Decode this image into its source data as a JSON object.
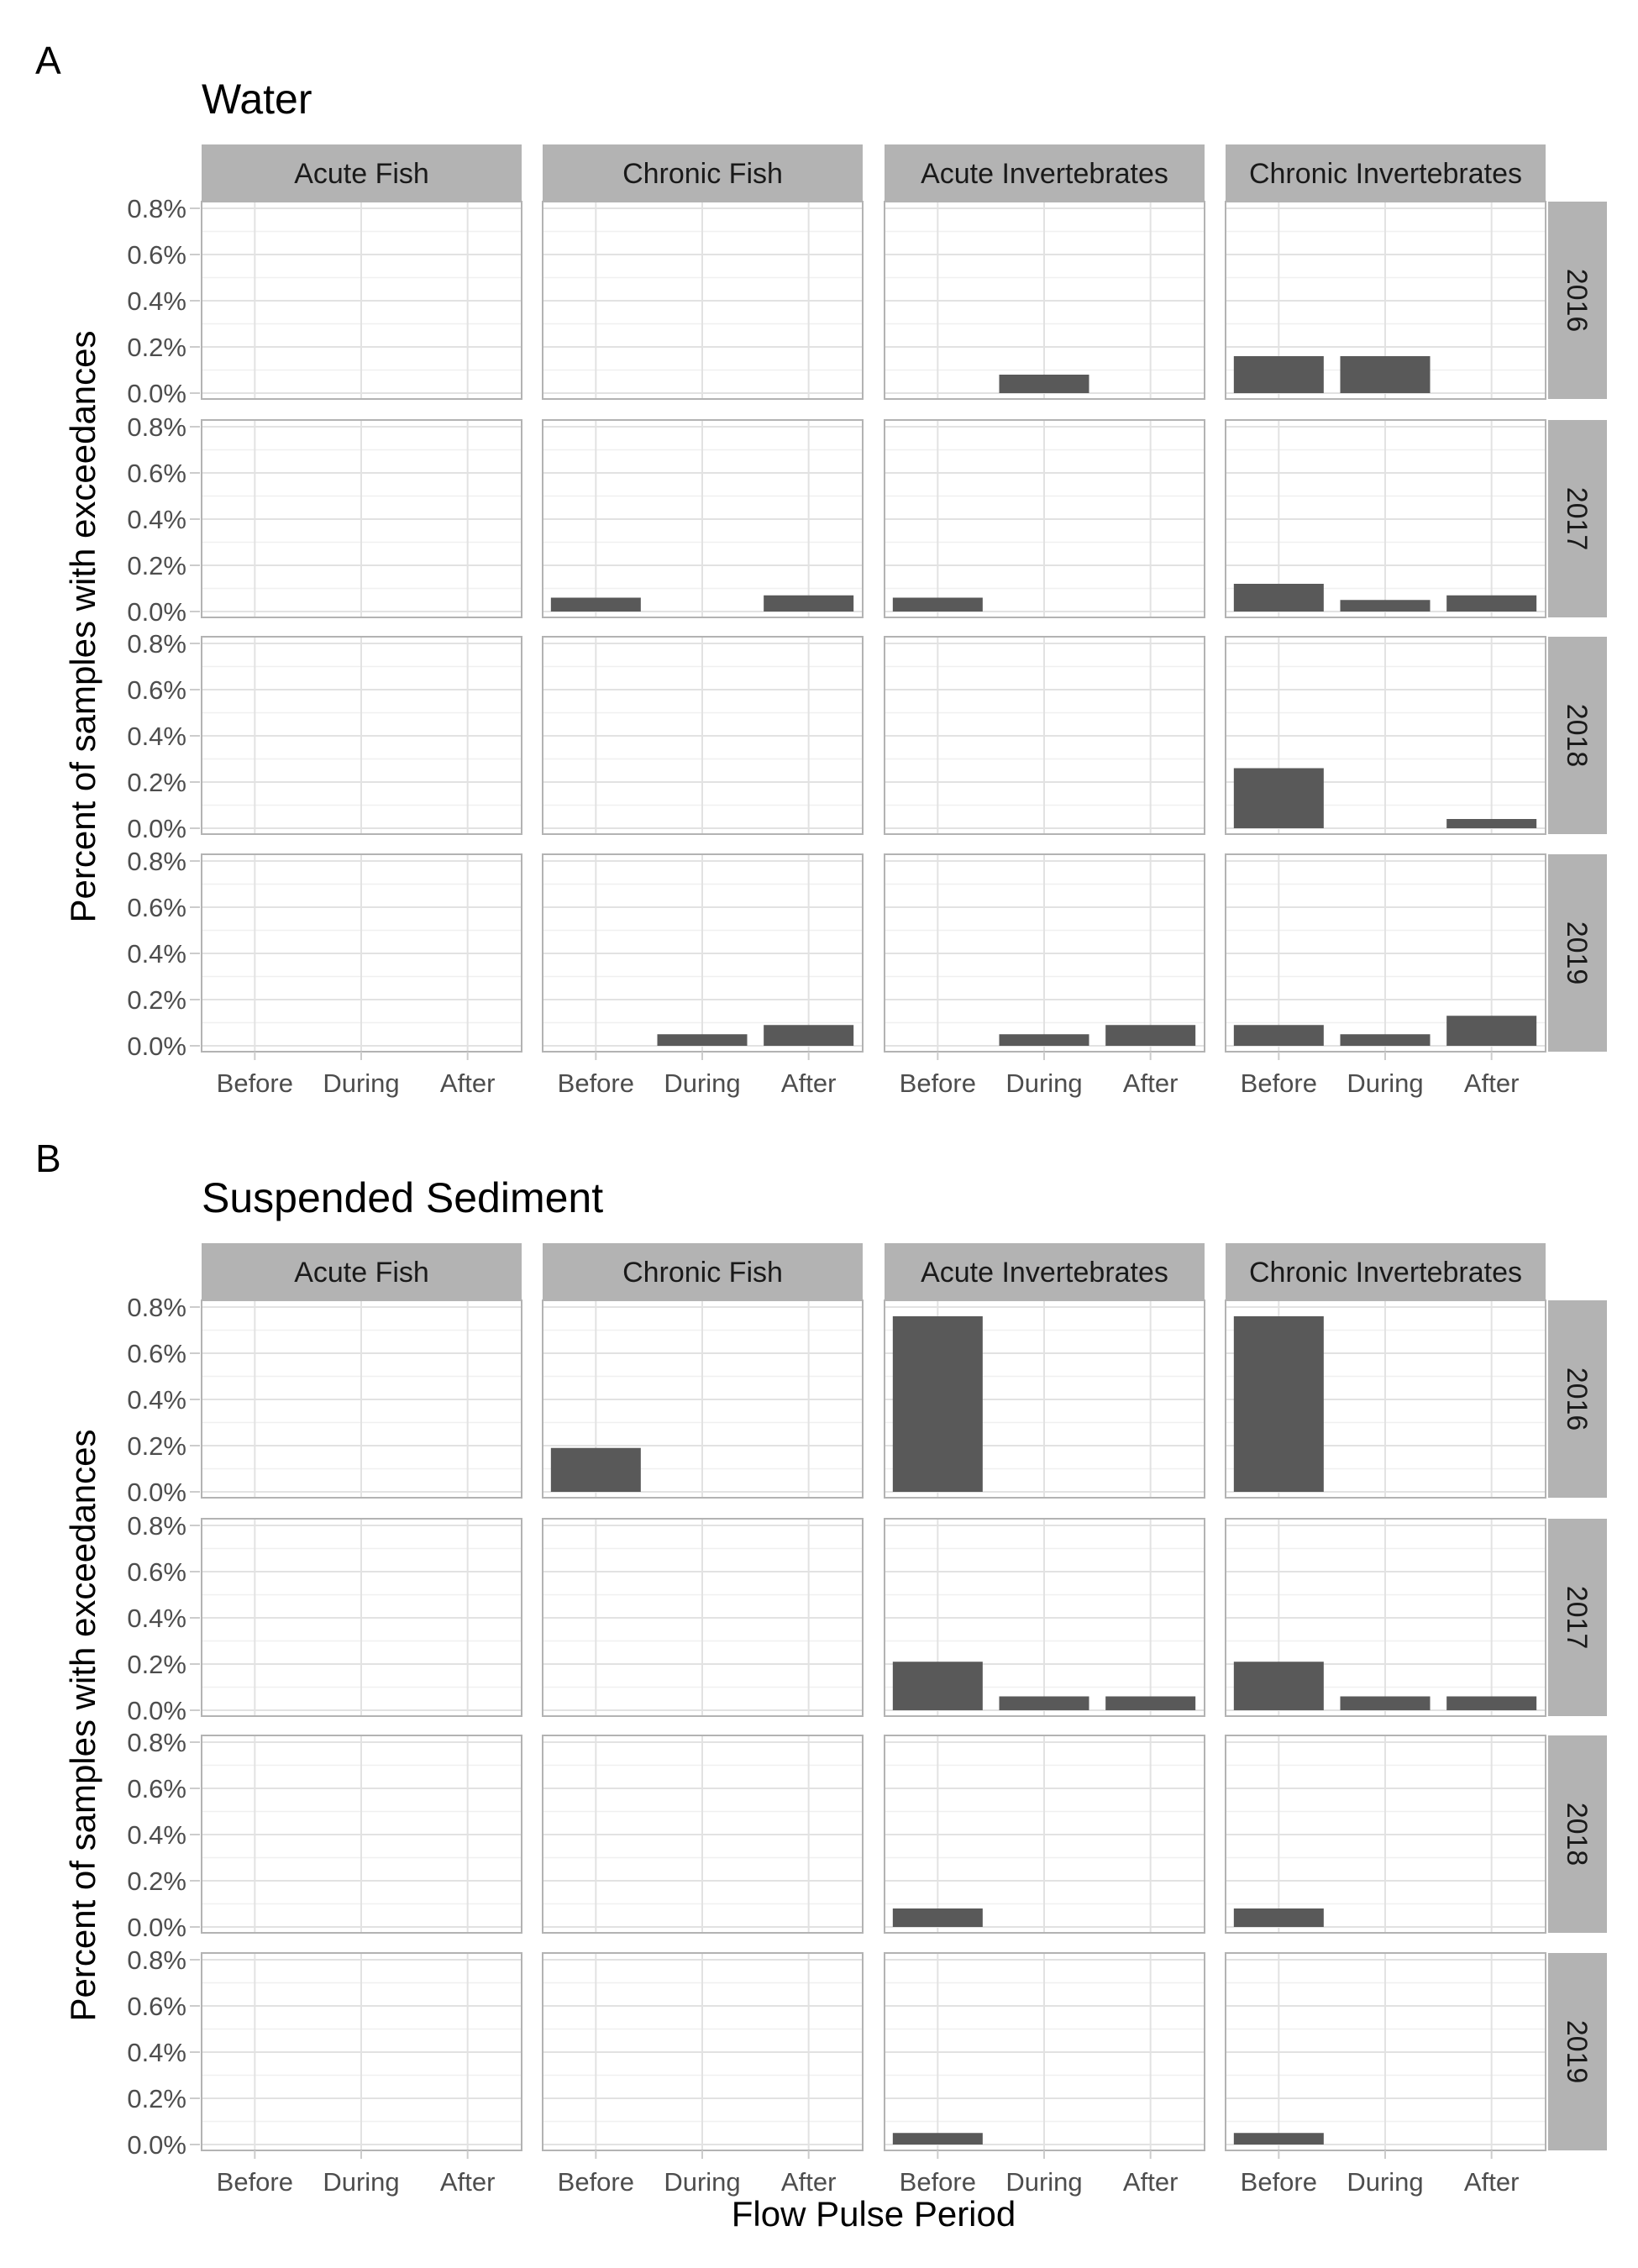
{
  "figure": {
    "x_axis_title": "Flow Pulse Period"
  },
  "chart_data": [
    {
      "type": "bar",
      "panel_label": "A",
      "title": "Water",
      "ylabel": "Percent of samples with exceedances",
      "xlabel": "",
      "facet_columns": [
        "Acute Fish",
        "Chronic Fish",
        "Acute Invertebrates",
        "Chronic Invertebrates"
      ],
      "facet_rows": [
        "2016",
        "2017",
        "2018",
        "2019"
      ],
      "categories": [
        "Before",
        "During",
        "After"
      ],
      "ylim": [
        0,
        0.8
      ],
      "yticks": [
        "0.0%",
        "0.2%",
        "0.4%",
        "0.6%",
        "0.8%"
      ],
      "grid": true,
      "values": [
        [
          [
            0,
            0,
            0
          ],
          [
            0,
            0,
            0
          ],
          [
            0,
            0.08,
            0
          ],
          [
            0.16,
            0.16,
            0
          ]
        ],
        [
          [
            0,
            0,
            0
          ],
          [
            0.06,
            0,
            0.07
          ],
          [
            0.06,
            0,
            0
          ],
          [
            0.12,
            0.05,
            0.07
          ]
        ],
        [
          [
            0,
            0,
            0
          ],
          [
            0,
            0,
            0
          ],
          [
            0,
            0,
            0
          ],
          [
            0.26,
            0,
            0.04
          ]
        ],
        [
          [
            0,
            0,
            0
          ],
          [
            0,
            0.05,
            0.09
          ],
          [
            0,
            0.05,
            0.09
          ],
          [
            0.09,
            0.05,
            0.13
          ]
        ]
      ]
    },
    {
      "type": "bar",
      "panel_label": "B",
      "title": "Suspended Sediment",
      "ylabel": "Percent of samples with exceedances",
      "xlabel": "Flow Pulse Period",
      "facet_columns": [
        "Acute Fish",
        "Chronic Fish",
        "Acute Invertebrates",
        "Chronic Invertebrates"
      ],
      "facet_rows": [
        "2016",
        "2017",
        "2018",
        "2019"
      ],
      "categories": [
        "Before",
        "During",
        "After"
      ],
      "ylim": [
        0,
        0.8
      ],
      "yticks": [
        "0.0%",
        "0.2%",
        "0.4%",
        "0.6%",
        "0.8%"
      ],
      "grid": true,
      "values": [
        [
          [
            0,
            0,
            0
          ],
          [
            0.19,
            0,
            0
          ],
          [
            0.76,
            0,
            0
          ],
          [
            0.76,
            0,
            0
          ]
        ],
        [
          [
            0,
            0,
            0
          ],
          [
            0,
            0,
            0
          ],
          [
            0.21,
            0.06,
            0.06
          ],
          [
            0.21,
            0.06,
            0.06
          ]
        ],
        [
          [
            0,
            0,
            0
          ],
          [
            0,
            0,
            0
          ],
          [
            0.08,
            0,
            0
          ],
          [
            0.08,
            0,
            0
          ]
        ],
        [
          [
            0,
            0,
            0
          ],
          [
            0,
            0,
            0
          ],
          [
            0.05,
            0,
            0
          ],
          [
            0.05,
            0,
            0
          ]
        ]
      ]
    }
  ]
}
